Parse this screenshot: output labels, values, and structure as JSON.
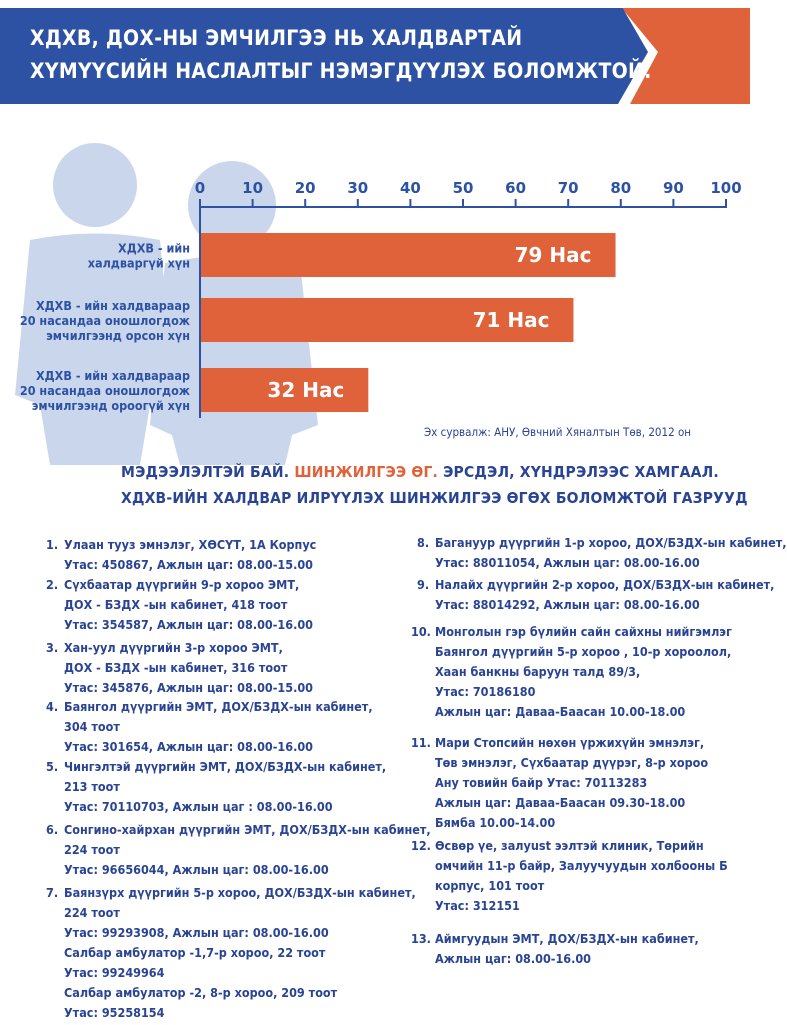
{
  "header": {
    "title_line1": "ХДХВ, ДОХ-НЫ ЭМЧИЛГЭЭ НЬ ХАЛДВАРТАЙ",
    "title_line2": "ХҮМҮҮСИЙН НАСЛАЛТЫГ НЭМЭГДҮҮЛЭХ БОЛОМЖТОЙ.",
    "colors": {
      "blue": "#2d51a3",
      "orange": "#e0623a"
    }
  },
  "chart_data": {
    "type": "bar",
    "orientation": "horizontal",
    "axis_ticks": [
      "0",
      "10",
      "20",
      "30",
      "40",
      "50",
      "60",
      "70",
      "80",
      "90",
      "100"
    ],
    "xlim": [
      0,
      100
    ],
    "categories": [
      {
        "lines": [
          "ХДХВ - ийн",
          "халдваргүй хүн"
        ]
      },
      {
        "lines": [
          "ХДХВ - ийн халдвараар",
          "20 насандаа оношлогдож",
          "эмчилгээнд орсон хүн"
        ]
      },
      {
        "lines": [
          "ХДХВ - ийн халдвараар",
          "20 насандаа оношлогдож",
          "эмчилгээнд ороогүй хүн"
        ]
      }
    ],
    "values": [
      79,
      71,
      32
    ],
    "value_labels": [
      "79 Нас",
      "71 Нас",
      "32 Нас"
    ],
    "bar_color": "#e0623a",
    "axis_color": "#2d51a3",
    "grid": false
  },
  "source": "Эх сурвалж: АНУ, Өвчний Хяналтын Төв, 2012 он",
  "section": {
    "slogan_blue1": "МЭДЭЭЛЭЛТЭЙ БАЙ.",
    "slogan_orange": "ШИНЖИЛГЭЭ ӨГ.",
    "slogan_blue2": "ЭРСДЭЛ, ХҮНДРЭЛЭЭС ХАМГААЛ.",
    "subtitle": "ХДХВ-ИЙН ХАЛДВАР ИЛРҮҮЛЭХ ШИНЖИЛГЭЭ ӨГӨХ БОЛОМЖТОЙ ГАЗРУУД"
  },
  "locations": [
    {
      "num": "1.",
      "lines": [
        "Улаан тууз эмнэлэг, ХӨСҮТ, 1А Корпус",
        "Утас: 450867, Ажлын цаг: 08.00-15.00"
      ]
    },
    {
      "num": "2.",
      "lines": [
        "Сүхбаатар дүүргийн 9-р хороо ЭМТ,",
        "ДОХ - БЗДХ -ын кабинет, 418 тоот",
        "Утас: 354587, Ажлын цаг: 08.00-16.00"
      ]
    },
    {
      "num": "3.",
      "lines": [
        "Хан-уул дүүргийн 3-р хороо ЭМТ,",
        "ДОХ - БЗДХ -ын кабинет, 316 тоот",
        "Утас: 345876, Ажлын цаг: 08.00-15.00"
      ]
    },
    {
      "num": "4.",
      "lines": [
        "Баянгол дүүргийн ЭМТ, ДОХ/БЗДХ-ын кабинет,",
        "304 тоот",
        "Утас: 301654, Ажлын цаг: 08.00-16.00"
      ]
    },
    {
      "num": "5.",
      "lines": [
        "Чингэлтэй дүүргийн ЭМТ, ДОХ/БЗДХ-ын кабинет,",
        "213 тоот",
        "Утас: 70110703, Ажлын цаг : 08.00-16.00"
      ]
    },
    {
      "num": "6.",
      "lines": [
        "Сонгино-хайрхан дүүргийн ЭМТ, ДОХ/БЗДХ-ын кабинет,",
        "224 тоот",
        "Утас: 96656044, Ажлын цаг: 08.00-16.00"
      ]
    },
    {
      "num": "7.",
      "lines": [
        "Баянзүрх дүүргийн 5-р хороо, ДОХ/БЗДХ-ын кабинет,",
        "224 тоот",
        "Утас: 99293908, Ажлын цаг: 08.00-16.00",
        "Салбар амбулатор -1,7-р хороо, 22 тоот",
        "Утас: 99249964",
        "Салбар амбулатор -2, 8-р хороо, 209 тоот",
        "Утас: 95258154"
      ]
    },
    {
      "num": "8.",
      "lines": [
        "Багануур дүүргийн 1-р хороо, ДОХ/БЗДХ-ын кабинет,",
        "Утас: 88011054, Ажлын цаг: 08.00-16.00"
      ]
    },
    {
      "num": "9.",
      "lines": [
        "Налайх дүүргийн 2-р хороо, ДОХ/БЗДХ-ын кабинет,",
        "Утас: 88014292, Ажлын цаг: 08.00-16.00"
      ]
    },
    {
      "num": "10.",
      "lines": [
        "Монголын гэр бүлийн сайн сайхны нийгэмлэг",
        "Баянгол дүүргийн 5-р хороо , 10-р хороолол,",
        "Хаан банкны баруун талд 89/3,",
        "Утас: 70186180",
        "Ажлын цаг: Даваа-Баасан 10.00-18.00"
      ]
    },
    {
      "num": "11.",
      "lines": [
        "Мари Стопсийн нөхөн үржихүйн эмнэлэг,",
        "Төв эмнэлэг, Сүхбаатар дүүрэг, 8-р хороо",
        "Ану товийн байр Утас: 70113283",
        "Ажлын цаг: Даваа-Баасан 09.30-18.00",
        "   Бямба 10.00-14.00"
      ]
    },
    {
      "num": "12.",
      "lines": [
        "Өсвөр үе, залуust ээлтэй клиник, Төрийн",
        "омчийн 11-р байр, Залуучуудын холбооны Б",
        "корпус, 101 тоот",
        "Утас: 312151"
      ]
    },
    {
      "num": "13.",
      "lines": [
        "Аймгуудын ЭМТ, ДОХ/БЗДХ-ын кабинет,",
        "Ажлын цаг: 08.00-16.00"
      ]
    }
  ]
}
